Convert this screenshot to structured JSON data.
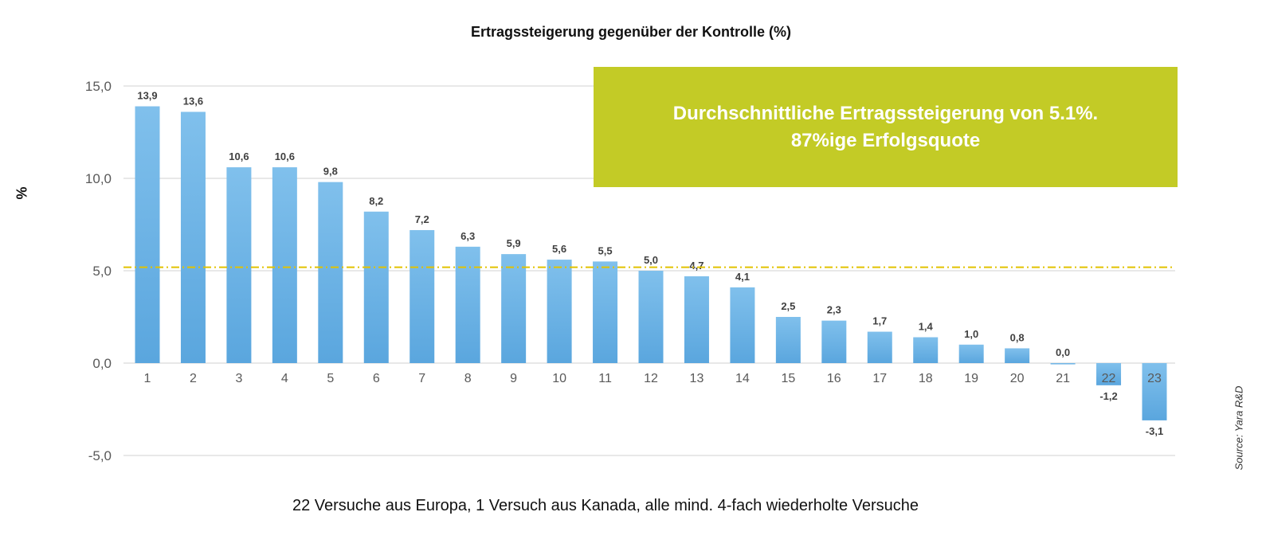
{
  "chart_data": {
    "type": "bar",
    "title": "Ertragssteigerung gegenüber der Kontrolle (%)",
    "ylabel": "%",
    "xlabel": "22 Versuche aus Europa, 1 Versuch aus Kanada, alle mind. 4-fach wiederholte Versuche",
    "categories": [
      "1",
      "2",
      "3",
      "4",
      "5",
      "6",
      "7",
      "8",
      "9",
      "10",
      "11",
      "12",
      "13",
      "14",
      "15",
      "16",
      "17",
      "18",
      "19",
      "20",
      "21",
      "22",
      "23"
    ],
    "values": [
      13.9,
      13.6,
      10.6,
      10.6,
      9.8,
      8.2,
      7.2,
      6.3,
      5.9,
      5.6,
      5.5,
      5.0,
      4.7,
      4.1,
      2.5,
      2.3,
      1.7,
      1.4,
      1.0,
      0.8,
      0.0,
      -1.2,
      -3.1
    ],
    "data_labels": [
      "13,9",
      "13,6",
      "10,6",
      "10,6",
      "9,8",
      "8,2",
      "7,2",
      "6,3",
      "5,9",
      "5,6",
      "5,5",
      "5,0",
      "4,7",
      "4,1",
      "2,5",
      "2,3",
      "1,7",
      "1,4",
      "1,0",
      "0,8",
      "0,0",
      "-1,2",
      "-3,1"
    ],
    "ylim": [
      -5,
      15
    ],
    "yticks": [
      15,
      10,
      5,
      0,
      -5
    ],
    "ytick_labels": [
      "15,0",
      "10,0",
      "5,0",
      "0,0",
      "-5,0"
    ],
    "average_line": 5.1,
    "grid": true,
    "colors": {
      "bar": "#6cb4e6",
      "average_line": "#e2c200",
      "annotation_box": "#c3cb26"
    }
  },
  "annotation": {
    "line1": "Durchschnittliche Ertragssteigerung von 5.1%.",
    "line2": "87%ige  Erfolgsquote"
  },
  "source": "Source: Yara R&D"
}
